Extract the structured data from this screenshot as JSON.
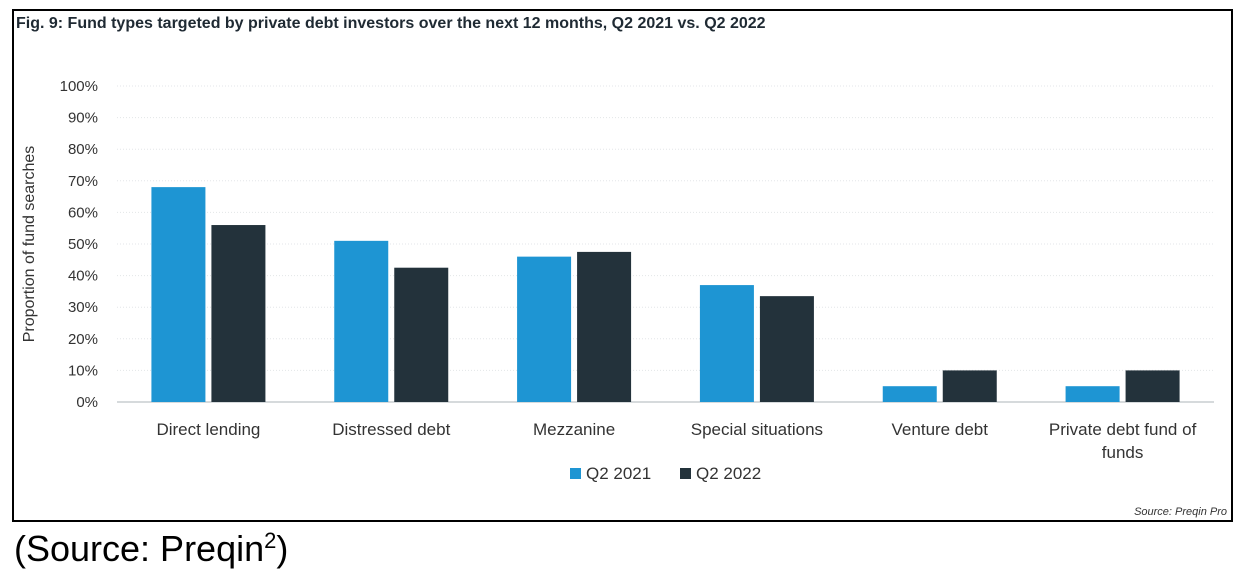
{
  "figure": {
    "title": "Fig. 9: Fund types targeted by private debt investors over the next 12 months, Q2 2021 vs. Q2 2022",
    "source_note": "Source: Preqin Pro"
  },
  "caption": {
    "text": "(Source: Preqin",
    "superscript": "2",
    "closing": ")"
  },
  "chart_data": {
    "type": "bar",
    "title": "Fig. 9: Fund types targeted by private debt investors over the next 12 months, Q2 2021 vs. Q2 2022",
    "xlabel": "",
    "ylabel": "Proportion of fund searches",
    "ylim": [
      0,
      100
    ],
    "yticks": [
      0,
      10,
      20,
      30,
      40,
      50,
      60,
      70,
      80,
      90,
      100
    ],
    "ytick_labels": [
      "0%",
      "10%",
      "20%",
      "30%",
      "40%",
      "50%",
      "60%",
      "70%",
      "80%",
      "90%",
      "100%"
    ],
    "grid": true,
    "legend_position": "bottom-center",
    "categories": [
      [
        "Direct lending"
      ],
      [
        "Distressed debt"
      ],
      [
        "Mezzanine"
      ],
      [
        "Special situations"
      ],
      [
        "Venture debt"
      ],
      [
        "Private debt fund of",
        "funds"
      ]
    ],
    "series": [
      {
        "name": "Q2 2021",
        "color": "#1e95d3",
        "values": [
          68,
          51,
          46,
          37,
          5,
          5
        ]
      },
      {
        "name": "Q2 2022",
        "color": "#23323b",
        "values": [
          56,
          42.5,
          47.5,
          33.5,
          10,
          10
        ]
      }
    ]
  }
}
